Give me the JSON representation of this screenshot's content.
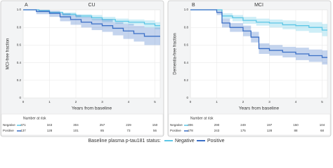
{
  "chart_data": [
    {
      "type": "step",
      "panel_label": "A",
      "title": "CU",
      "ylabel": "MCI-free fraction",
      "xlabel": "Years from baseline",
      "xlim": [
        0,
        5.2
      ],
      "ylim": [
        0,
        1
      ],
      "xticks": [
        0,
        1,
        2,
        3,
        4,
        5
      ],
      "yticks": [
        0,
        0.2,
        0.4,
        0.6,
        0.8,
        {
          "value": 1,
          "label": "1.0"
        }
      ],
      "grid": true,
      "series": [
        {
          "name": "Negative",
          "color": "#5cc6e6",
          "x": [
            0,
            0.6,
            1.0,
            1.5,
            2.0,
            2.6,
            3.0,
            3.5,
            4.0,
            4.6,
            5.0,
            5.2
          ],
          "values": [
            1,
            0.99,
            0.97,
            0.95,
            0.93,
            0.91,
            0.89,
            0.87,
            0.86,
            0.84,
            0.82,
            0.82
          ],
          "lower": [
            1,
            0.98,
            0.96,
            0.93,
            0.91,
            0.88,
            0.86,
            0.84,
            0.83,
            0.8,
            0.78,
            0.78
          ],
          "upper": [
            1,
            1,
            0.98,
            0.97,
            0.95,
            0.94,
            0.92,
            0.9,
            0.89,
            0.88,
            0.86,
            0.86
          ]
        },
        {
          "name": "Positive",
          "color": "#3b6fc6",
          "x": [
            0,
            0.5,
            1.0,
            1.4,
            1.8,
            2.2,
            2.6,
            3.0,
            3.4,
            3.8,
            4.2,
            4.6,
            5.2
          ],
          "values": [
            1,
            0.98,
            0.96,
            0.92,
            0.89,
            0.86,
            0.84,
            0.82,
            0.79,
            0.76,
            0.73,
            0.7,
            0.7
          ],
          "lower": [
            1,
            0.95,
            0.92,
            0.87,
            0.83,
            0.8,
            0.77,
            0.75,
            0.71,
            0.67,
            0.64,
            0.6,
            0.6
          ],
          "upper": [
            1,
            1,
            0.99,
            0.96,
            0.94,
            0.92,
            0.9,
            0.89,
            0.86,
            0.84,
            0.82,
            0.8,
            0.8
          ]
        }
      ],
      "risk_table": {
        "title": "Number at risk",
        "rows": [
          [
            371,
            343,
            304,
            257,
            229,
            150
          ],
          [
            137,
            128,
            101,
            85,
            73,
            56
          ]
        ]
      }
    },
    {
      "type": "step",
      "panel_label": "B",
      "title": "MCI",
      "ylabel": "Dementia-free fraction",
      "xlabel": "Years from baseline",
      "xlim": [
        0,
        5.2
      ],
      "ylim": [
        0,
        1
      ],
      "xticks": [
        0,
        1,
        2,
        3,
        4,
        5
      ],
      "yticks": [
        0,
        0.2,
        0.4,
        0.6,
        0.8,
        {
          "value": 1,
          "label": "1.0"
        }
      ],
      "grid": true,
      "series": [
        {
          "name": "Negative",
          "color": "#5cc6e6",
          "x": [
            0,
            1.0,
            1.2,
            1.6,
            2.0,
            2.5,
            3.0,
            3.5,
            4.0,
            4.5,
            5.0,
            5.2
          ],
          "values": [
            1,
            1,
            0.93,
            0.91,
            0.88,
            0.86,
            0.85,
            0.83,
            0.82,
            0.8,
            0.77,
            0.77
          ],
          "lower": [
            1,
            0.99,
            0.9,
            0.87,
            0.84,
            0.82,
            0.8,
            0.78,
            0.76,
            0.74,
            0.7,
            0.7
          ],
          "upper": [
            1,
            1,
            0.96,
            0.94,
            0.92,
            0.9,
            0.89,
            0.88,
            0.87,
            0.86,
            0.84,
            0.84
          ]
        },
        {
          "name": "Positive",
          "color": "#3b6fc6",
          "x": [
            0,
            1.0,
            1.2,
            1.5,
            2.0,
            2.3,
            2.6,
            3.0,
            3.5,
            4.0,
            4.5,
            5.0,
            5.2
          ],
          "values": [
            1,
            0.97,
            0.85,
            0.8,
            0.76,
            0.69,
            0.56,
            0.54,
            0.52,
            0.5,
            0.48,
            0.46,
            0.46
          ],
          "lower": [
            1,
            0.94,
            0.8,
            0.75,
            0.7,
            0.63,
            0.5,
            0.48,
            0.46,
            0.43,
            0.41,
            0.38,
            0.38
          ],
          "upper": [
            1,
            0.99,
            0.9,
            0.85,
            0.82,
            0.75,
            0.62,
            0.6,
            0.58,
            0.57,
            0.55,
            0.54,
            0.54
          ]
        }
      ],
      "risk_table": {
        "title": "Number at risk",
        "rows": [
          [
            306,
            290,
            249,
            197,
            150,
            104
          ],
          [
            278,
            243,
            175,
            128,
            88,
            68
          ]
        ]
      }
    }
  ],
  "legend_title": "Baseline plasma p-tau181 status:"
}
